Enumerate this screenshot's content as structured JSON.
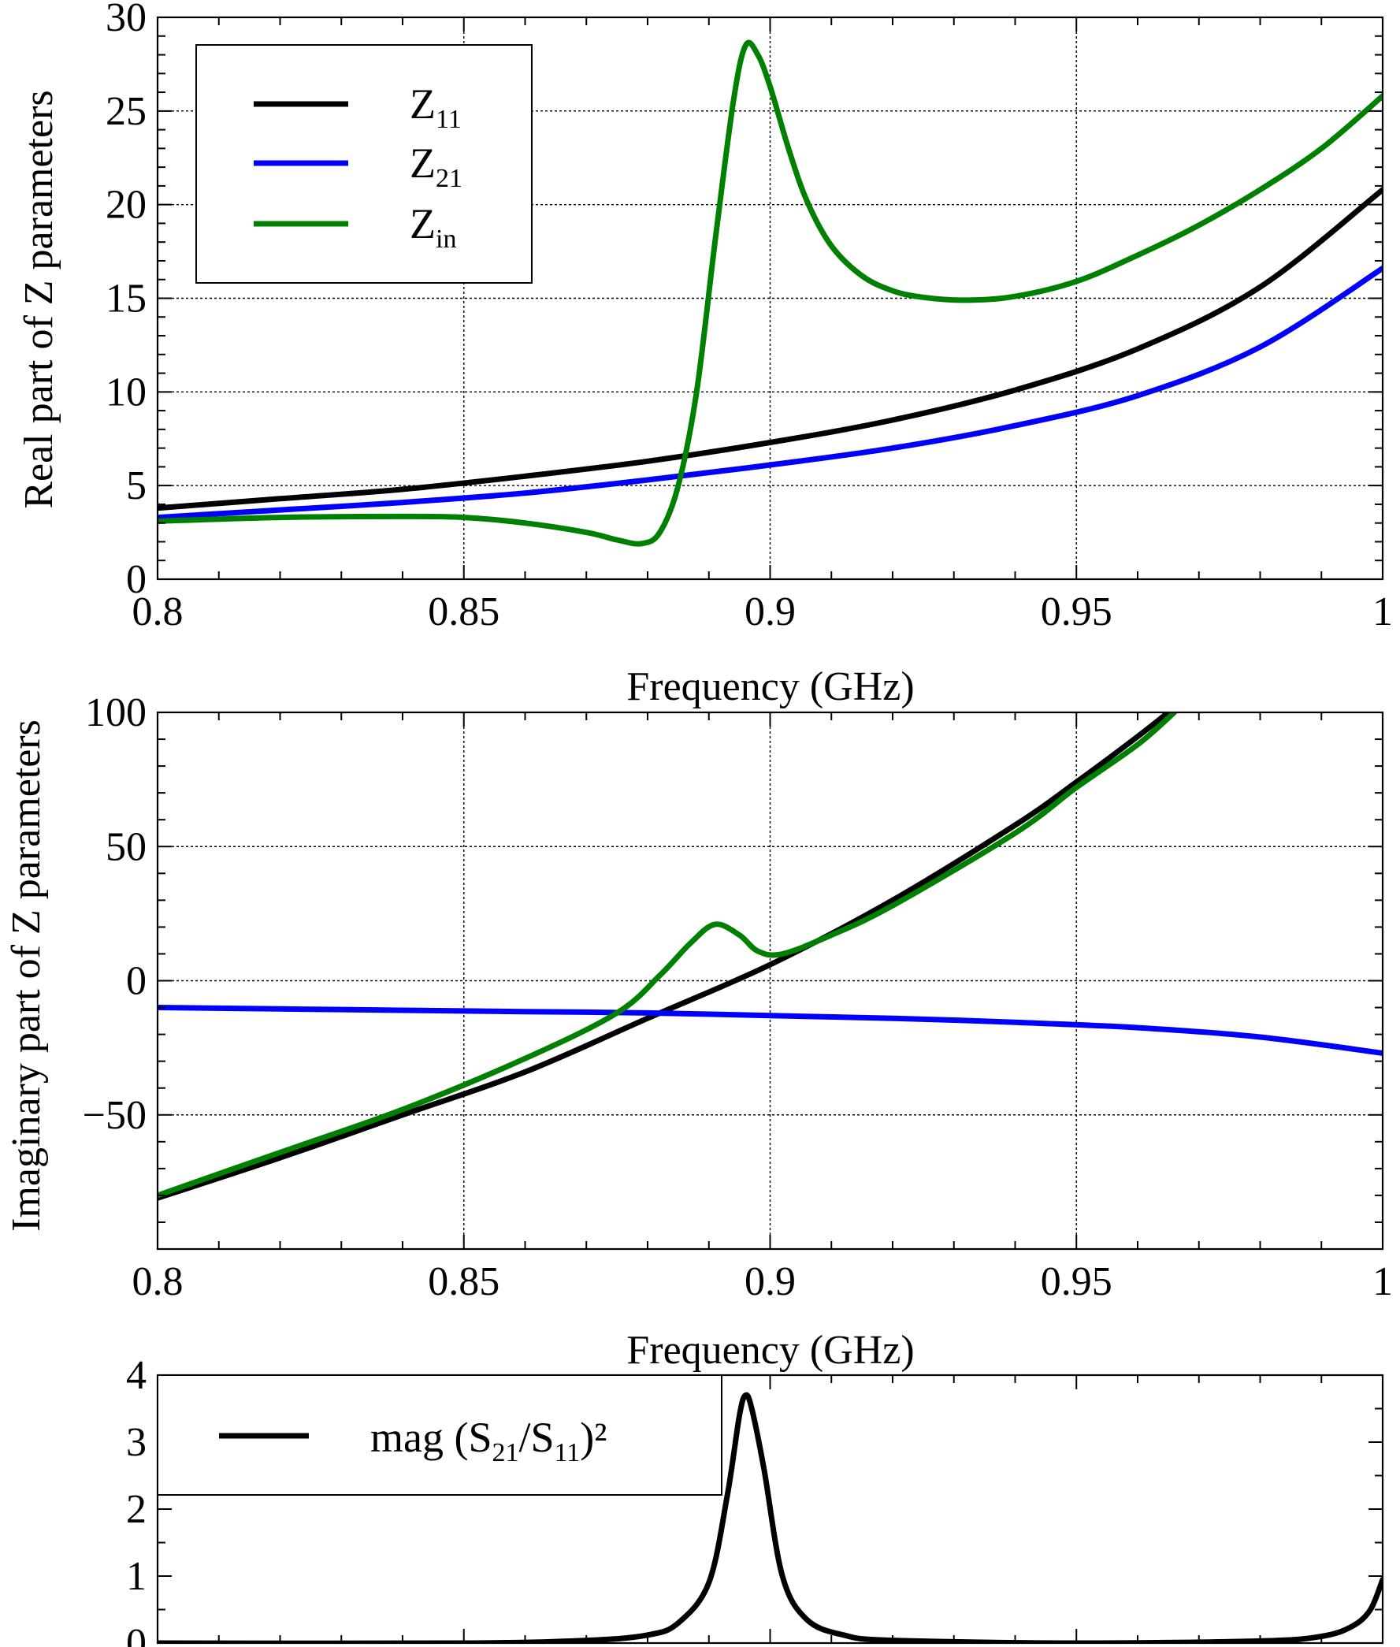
{
  "chart_data": [
    {
      "type": "line",
      "ylabel": "Real part of Z parameters",
      "xlabel": "Frequency (GHz)",
      "xlim": [
        0.8,
        1.0
      ],
      "ylim": [
        0,
        30
      ],
      "xticks": [
        0.8,
        0.85,
        0.9,
        0.95,
        1.0
      ],
      "xtick_labels": [
        "0.8",
        "0.85",
        "0.9",
        "0.95",
        "1"
      ],
      "yticks": [
        0,
        5,
        10,
        15,
        20,
        25,
        30
      ],
      "ytick_labels": [
        "0",
        "5",
        "10",
        "15",
        "20",
        "25",
        "30"
      ],
      "grid": true,
      "legend_position": "top-left",
      "series": [
        {
          "name": "Z11",
          "label_main": "Z",
          "label_sub": "11",
          "color": "#000000",
          "x": [
            0.8,
            0.82,
            0.84,
            0.86,
            0.88,
            0.9,
            0.92,
            0.94,
            0.96,
            0.98,
            1.0
          ],
          "y": [
            3.8,
            4.3,
            4.8,
            5.5,
            6.3,
            7.3,
            8.5,
            10.1,
            12.3,
            15.6,
            20.8
          ]
        },
        {
          "name": "Z21",
          "label_main": "Z",
          "label_sub": "21",
          "color": "#0000ff",
          "x": [
            0.8,
            0.82,
            0.84,
            0.86,
            0.88,
            0.9,
            0.92,
            0.94,
            0.96,
            0.98,
            1.0
          ],
          "y": [
            3.3,
            3.7,
            4.1,
            4.6,
            5.3,
            6.1,
            7.0,
            8.2,
            9.8,
            12.4,
            16.6
          ]
        },
        {
          "name": "Zin",
          "label_main": "Z",
          "label_sub": "in",
          "color": "#008000",
          "x": [
            0.8,
            0.82,
            0.84,
            0.85,
            0.86,
            0.87,
            0.875,
            0.879,
            0.882,
            0.885,
            0.888,
            0.891,
            0.894,
            0.896,
            0.898,
            0.9,
            0.903,
            0.906,
            0.91,
            0.915,
            0.92,
            0.925,
            0.932,
            0.94,
            0.95,
            0.96,
            0.97,
            0.98,
            0.99,
            1.0
          ],
          "y": [
            3.1,
            3.3,
            3.35,
            3.3,
            3.0,
            2.5,
            2.1,
            1.9,
            2.5,
            5.0,
            10.0,
            18.0,
            25.5,
            28.5,
            28.0,
            26.3,
            23.0,
            20.2,
            17.8,
            16.2,
            15.4,
            15.05,
            14.9,
            15.1,
            15.9,
            17.3,
            18.9,
            20.8,
            23.0,
            25.8
          ]
        }
      ]
    },
    {
      "type": "line",
      "ylabel": "Imaginary part of Z parameters",
      "xlabel": "Frequency (GHz)",
      "xlim": [
        0.8,
        1.0
      ],
      "ylim": [
        -100,
        100
      ],
      "xticks": [
        0.8,
        0.85,
        0.9,
        0.95,
        1.0
      ],
      "xtick_labels": [
        "0.8",
        "0.85",
        "0.9",
        "0.95",
        "1"
      ],
      "yticks": [
        -50,
        0,
        50,
        100
      ],
      "ytick_labels": [
        "−50",
        "0",
        "50",
        "100"
      ],
      "grid": true,
      "series": [
        {
          "name": "Z11",
          "color": "#000000",
          "x": [
            0.8,
            0.82,
            0.84,
            0.86,
            0.88,
            0.9,
            0.92,
            0.94,
            0.95,
            0.96,
            0.965
          ],
          "y": [
            -81,
            -66,
            -50,
            -34,
            -14,
            6,
            30,
            58,
            74,
            91,
            100
          ]
        },
        {
          "name": "Z21",
          "color": "#0000ff",
          "x": [
            0.8,
            0.82,
            0.84,
            0.86,
            0.88,
            0.9,
            0.92,
            0.94,
            0.96,
            0.98,
            1.0
          ],
          "y": [
            -10,
            -10.5,
            -11,
            -11.5,
            -12,
            -13,
            -14,
            -15.5,
            -17.5,
            -21,
            -27
          ]
        },
        {
          "name": "Zin",
          "color": "#008000",
          "x": [
            0.8,
            0.82,
            0.84,
            0.86,
            0.875,
            0.882,
            0.887,
            0.891,
            0.895,
            0.898,
            0.902,
            0.91,
            0.92,
            0.94,
            0.95,
            0.96,
            0.966
          ],
          "y": [
            -80,
            -64,
            -48,
            -29,
            -12,
            2,
            14,
            21,
            17,
            11,
            10,
            17,
            28,
            55,
            72,
            88,
            100
          ]
        }
      ]
    },
    {
      "type": "line",
      "xlim": [
        0.8,
        1.0
      ],
      "ylim": [
        0,
        4
      ],
      "xticks": [
        0.8,
        0.85,
        0.9,
        0.95,
        1.0
      ],
      "yticks": [
        0,
        1,
        2,
        3,
        4
      ],
      "ytick_labels": [
        "0",
        "1",
        "2",
        "3",
        "4"
      ],
      "grid": false,
      "legend_position": "top-left",
      "series": [
        {
          "name": "mag (S21/S11)²",
          "label_a": "mag (S",
          "label_sub1": "21",
          "label_b": "/S",
          "label_sub2": "11",
          "label_c": ")²",
          "color": "#000000",
          "x": [
            0.8,
            0.85,
            0.87,
            0.88,
            0.885,
            0.89,
            0.893,
            0.895,
            0.896,
            0.897,
            0.899,
            0.902,
            0.906,
            0.912,
            0.92,
            0.95,
            0.98,
            0.99,
            0.995,
            0.998,
            1.0
          ],
          "y": [
            0.0,
            0.0,
            0.04,
            0.12,
            0.3,
            0.9,
            2.2,
            3.4,
            3.7,
            3.5,
            2.6,
            1.0,
            0.35,
            0.12,
            0.04,
            0.0,
            0.03,
            0.1,
            0.25,
            0.5,
            0.95
          ]
        }
      ]
    }
  ]
}
